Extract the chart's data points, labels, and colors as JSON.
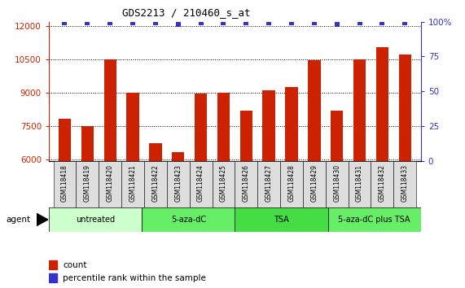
{
  "title": "GDS2213 / 210460_s_at",
  "samples": [
    "GSM118418",
    "GSM118419",
    "GSM118420",
    "GSM118421",
    "GSM118422",
    "GSM118423",
    "GSM118424",
    "GSM118425",
    "GSM118426",
    "GSM118427",
    "GSM118428",
    "GSM118429",
    "GSM118430",
    "GSM118431",
    "GSM118432",
    "GSM118433"
  ],
  "counts": [
    7800,
    7500,
    10480,
    9000,
    6700,
    6300,
    8950,
    9000,
    8200,
    9100,
    9250,
    10450,
    8200,
    10500,
    11050,
    10700
  ],
  "percentile_ranks": [
    99,
    99,
    99,
    99,
    99,
    98,
    99,
    99,
    99,
    99,
    99,
    99,
    98,
    99,
    99,
    99
  ],
  "bar_color": "#cc2200",
  "dot_color": "#3333cc",
  "ylim_left": [
    5900,
    12200
  ],
  "ylim_right": [
    0,
    100
  ],
  "yticks_left": [
    6000,
    7500,
    9000,
    10500,
    12000
  ],
  "yticks_right": [
    0,
    25,
    50,
    75,
    100
  ],
  "groups": [
    {
      "label": "untreated",
      "start": 0,
      "end": 4,
      "color": "#ccffcc"
    },
    {
      "label": "5-aza-dC",
      "start": 4,
      "end": 8,
      "color": "#66ee66"
    },
    {
      "label": "TSA",
      "start": 8,
      "end": 12,
      "color": "#44dd44"
    },
    {
      "label": "5-aza-dC plus TSA",
      "start": 12,
      "end": 16,
      "color": "#66ee66"
    }
  ],
  "bar_color_legend": "#cc2200",
  "dot_color_legend": "#3333cc",
  "dotted_line_color": "#000000",
  "bar_width": 0.55,
  "tick_bg_color": "#dddddd"
}
